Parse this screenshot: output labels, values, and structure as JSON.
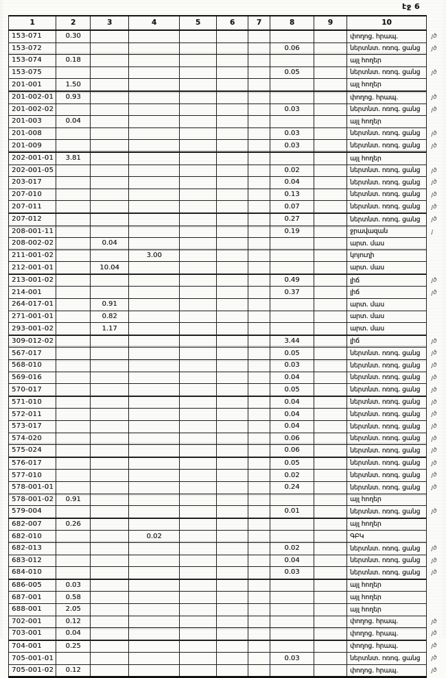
{
  "document": {
    "page_label": "էջ 6"
  },
  "table": {
    "headers": [
      "1",
      "2",
      "3",
      "4",
      "5",
      "6",
      "7",
      "8",
      "9",
      "10"
    ],
    "rows": [
      {
        "cells": [
          "153-071",
          "0.30",
          "",
          "",
          "",
          "",
          "",
          "",
          "",
          "փողոց. հրապ."
        ],
        "mark": "յծ"
      },
      {
        "cells": [
          "153-072",
          "",
          "",
          "",
          "",
          "",
          "",
          "0.06",
          "",
          "ներտնտ. ոռոգ. ցանց"
        ],
        "mark": "յծ"
      },
      {
        "cells": [
          "153-074",
          "0.18",
          "",
          "",
          "",
          "",
          "",
          "",
          "",
          "այլ հողեր"
        ],
        "mark": ""
      },
      {
        "cells": [
          "153-075",
          "",
          "",
          "",
          "",
          "",
          "",
          "0.05",
          "",
          "ներտնտ. ոռոգ. ցանց"
        ],
        "mark": "յծ"
      },
      {
        "cells": [
          "201-001",
          "1.50",
          "",
          "",
          "",
          "",
          "",
          "",
          "",
          "այլ հողեր"
        ],
        "mark": ""
      },
      {
        "cells": [
          "201-002-01",
          "0.93",
          "",
          "",
          "",
          "",
          "",
          "",
          "",
          "փողոց. հրապ."
        ],
        "mark": "յծ"
      },
      {
        "cells": [
          "201-002-02",
          "",
          "",
          "",
          "",
          "",
          "",
          "0.03",
          "",
          "ներտնտ. ոռոգ. ցանց"
        ],
        "mark": "յծ"
      },
      {
        "cells": [
          "201-003",
          "0.04",
          "",
          "",
          "",
          "",
          "",
          "",
          "",
          "այլ հողեր"
        ],
        "mark": ""
      },
      {
        "cells": [
          "201-008",
          "",
          "",
          "",
          "",
          "",
          "",
          "0.03",
          "",
          "ներտնտ. ոռոգ. ցանց"
        ],
        "mark": "յծ"
      },
      {
        "cells": [
          "201-009",
          "",
          "",
          "",
          "",
          "",
          "",
          "0.03",
          "",
          "ներտնտ. ոռոգ. ցանց"
        ],
        "mark": "յծ"
      },
      {
        "cells": [
          "202-001-01",
          "3.81",
          "",
          "",
          "",
          "",
          "",
          "",
          "",
          "այլ հողեր"
        ],
        "mark": ""
      },
      {
        "cells": [
          "202-001-05",
          "",
          "",
          "",
          "",
          "",
          "",
          "0.02",
          "",
          "ներտնտ. ոռոգ. ցանց"
        ],
        "mark": "յծ"
      },
      {
        "cells": [
          "203-017",
          "",
          "",
          "",
          "",
          "",
          "",
          "0.04",
          "",
          "ներտնտ. ոռոգ. ցանց"
        ],
        "mark": "յծ"
      },
      {
        "cells": [
          "207-010",
          "",
          "",
          "",
          "",
          "",
          "",
          "0.13",
          "",
          "ներտնտ. ոռոգ. ցանց"
        ],
        "mark": "յծ"
      },
      {
        "cells": [
          "207-011",
          "",
          "",
          "",
          "",
          "",
          "",
          "0.07",
          "",
          "ներտնտ. ոռոգ. ցանց"
        ],
        "mark": "յծ"
      },
      {
        "cells": [
          "207-012",
          "",
          "",
          "",
          "",
          "",
          "",
          "0.27",
          "",
          "ներտնտ. ոռոգ. ցանց"
        ],
        "mark": "յծ"
      },
      {
        "cells": [
          "208-001-11",
          "",
          "",
          "",
          "",
          "",
          "",
          "0.19",
          "",
          "ջրավազան"
        ],
        "mark": "յ"
      },
      {
        "cells": [
          "208-002-02",
          "",
          "0.04",
          "",
          "",
          "",
          "",
          "",
          "",
          "արտ. մաս"
        ],
        "mark": ""
      },
      {
        "cells": [
          "211-001-02",
          "",
          "",
          "3.00",
          "",
          "",
          "",
          "",
          "",
          "կոյուղի"
        ],
        "mark": ""
      },
      {
        "cells": [
          "212-001-01",
          "",
          "10.04",
          "",
          "",
          "",
          "",
          "",
          "",
          "արտ. մաս"
        ],
        "mark": ""
      },
      {
        "cells": [
          "213-001-02",
          "",
          "",
          "",
          "",
          "",
          "",
          "0.49",
          "",
          "լիճ"
        ],
        "mark": "յծ"
      },
      {
        "cells": [
          "214-001",
          "",
          "",
          "",
          "",
          "",
          "",
          "0.37",
          "",
          "լիճ"
        ],
        "mark": "յծ"
      },
      {
        "cells": [
          "264-017-01",
          "",
          "0.91",
          "",
          "",
          "",
          "",
          "",
          "",
          "արտ. մաս"
        ],
        "mark": ""
      },
      {
        "cells": [
          "271-001-01",
          "",
          "0.82",
          "",
          "",
          "",
          "",
          "",
          "",
          "արտ. մաս"
        ],
        "mark": ""
      },
      {
        "cells": [
          "293-001-02",
          "",
          "1.17",
          "",
          "",
          "",
          "",
          "",
          "",
          "արտ. մաս"
        ],
        "mark": ""
      },
      {
        "cells": [
          "309-012-02",
          "",
          "",
          "",
          "",
          "",
          "",
          "3.44",
          "",
          "լիճ"
        ],
        "mark": "յծ"
      },
      {
        "cells": [
          "567-017",
          "",
          "",
          "",
          "",
          "",
          "",
          "0.05",
          "",
          "ներտնտ. ոռոգ. ցանց"
        ],
        "mark": "յծ"
      },
      {
        "cells": [
          "568-010",
          "",
          "",
          "",
          "",
          "",
          "",
          "0.03",
          "",
          "ներտնտ. ոռոգ. ցանց"
        ],
        "mark": "յծ"
      },
      {
        "cells": [
          "569-016",
          "",
          "",
          "",
          "",
          "",
          "",
          "0.04",
          "",
          "ներտնտ. ոռոգ. ցանց"
        ],
        "mark": "յծ"
      },
      {
        "cells": [
          "570-017",
          "",
          "",
          "",
          "",
          "",
          "",
          "0.05",
          "",
          "ներտնտ. ոռոգ. ցանց"
        ],
        "mark": "յծ"
      },
      {
        "cells": [
          "571-010",
          "",
          "",
          "",
          "",
          "",
          "",
          "0.04",
          "",
          "ներտնտ. ոռոգ. ցանց"
        ],
        "mark": "յծ"
      },
      {
        "cells": [
          "572-011",
          "",
          "",
          "",
          "",
          "",
          "",
          "0.04",
          "",
          "ներտնտ. ոռոգ. ցանց"
        ],
        "mark": "յծ"
      },
      {
        "cells": [
          "573-017",
          "",
          "",
          "",
          "",
          "",
          "",
          "0.04",
          "",
          "ներտնտ. ոռոգ. ցանց"
        ],
        "mark": "յծ"
      },
      {
        "cells": [
          "574-020",
          "",
          "",
          "",
          "",
          "",
          "",
          "0.06",
          "",
          "ներտնտ. ոռոգ. ցանց"
        ],
        "mark": "յծ"
      },
      {
        "cells": [
          "575-024",
          "",
          "",
          "",
          "",
          "",
          "",
          "0.06",
          "",
          "ներտնտ. ոռոգ. ցանց"
        ],
        "mark": "յծ"
      },
      {
        "cells": [
          "576-017",
          "",
          "",
          "",
          "",
          "",
          "",
          "0.05",
          "",
          "ներտնտ. ոռոգ. ցանց"
        ],
        "mark": "յծ"
      },
      {
        "cells": [
          "577-010",
          "",
          "",
          "",
          "",
          "",
          "",
          "0.02",
          "",
          "ներտնտ. ոռոգ. ցանց"
        ],
        "mark": "յծ"
      },
      {
        "cells": [
          "578-001-01",
          "",
          "",
          "",
          "",
          "",
          "",
          "0.24",
          "",
          "ներտնտ. ոռոգ. ցանց"
        ],
        "mark": "յծ"
      },
      {
        "cells": [
          "578-001-02",
          "0.91",
          "",
          "",
          "",
          "",
          "",
          "",
          "",
          "այլ հողեր"
        ],
        "mark": ""
      },
      {
        "cells": [
          "579-004",
          "",
          "",
          "",
          "",
          "",
          "",
          "0.01",
          "",
          "ներտնտ. ոռոգ. ցանց"
        ],
        "mark": "յծ"
      },
      {
        "cells": [
          "682-007",
          "0.26",
          "",
          "",
          "",
          "",
          "",
          "",
          "",
          "այլ հողեր"
        ],
        "mark": ""
      },
      {
        "cells": [
          "682-010",
          "",
          "",
          "0.02",
          "",
          "",
          "",
          "",
          "",
          "ԳԲԿ"
        ],
        "mark": ""
      },
      {
        "cells": [
          "682-013",
          "",
          "",
          "",
          "",
          "",
          "",
          "0.02",
          "",
          "ներտնտ. ոռոգ. ցանց"
        ],
        "mark": "յծ"
      },
      {
        "cells": [
          "683-012",
          "",
          "",
          "",
          "",
          "",
          "",
          "0.04",
          "",
          "ներտնտ. ոռոգ. ցանց"
        ],
        "mark": "յծ"
      },
      {
        "cells": [
          "684-010",
          "",
          "",
          "",
          "",
          "",
          "",
          "0.03",
          "",
          "ներտնտ. ոռոգ. ցանց"
        ],
        "mark": "յծ"
      },
      {
        "cells": [
          "686-005",
          "0.03",
          "",
          "",
          "",
          "",
          "",
          "",
          "",
          "այլ հողեր"
        ],
        "mark": ""
      },
      {
        "cells": [
          "687-001",
          "0.58",
          "",
          "",
          "",
          "",
          "",
          "",
          "",
          "այլ հողեր"
        ],
        "mark": ""
      },
      {
        "cells": [
          "688-001",
          "2.05",
          "",
          "",
          "",
          "",
          "",
          "",
          "",
          "այլ հողեր"
        ],
        "mark": ""
      },
      {
        "cells": [
          "702-001",
          "0.12",
          "",
          "",
          "",
          "",
          "",
          "",
          "",
          "փողոց. հրապ."
        ],
        "mark": "յծ"
      },
      {
        "cells": [
          "703-001",
          "0.04",
          "",
          "",
          "",
          "",
          "",
          "",
          "",
          "փողոց. հրապ."
        ],
        "mark": "յծ"
      },
      {
        "cells": [
          "704-001",
          "0.25",
          "",
          "",
          "",
          "",
          "",
          "",
          "",
          "փողոց. հրապ."
        ],
        "mark": "յծ"
      },
      {
        "cells": [
          "705-001-01",
          "",
          "",
          "",
          "",
          "",
          "",
          "0.03",
          "",
          "ներտնտ. ոռոգ. ցանց"
        ],
        "mark": "յծ"
      },
      {
        "cells": [
          "705-001-02",
          "0.12",
          "",
          "",
          "",
          "",
          "",
          "",
          "",
          "փողոց. հրապ."
        ],
        "mark": "յծ"
      }
    ]
  }
}
